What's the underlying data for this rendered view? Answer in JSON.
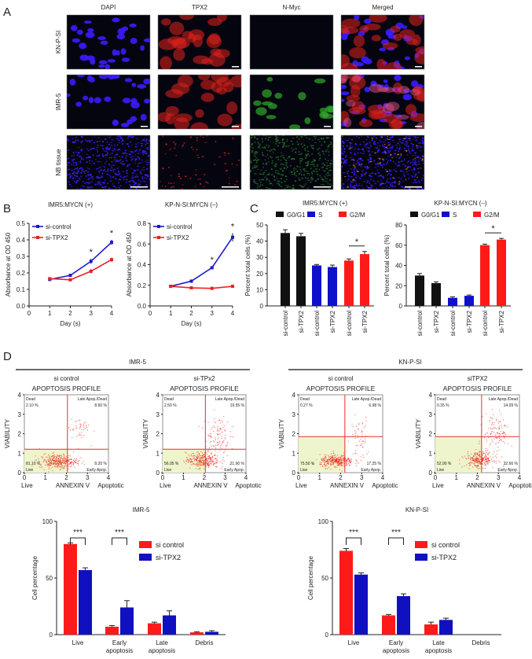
{
  "panel_labels": [
    "A",
    "B",
    "C",
    "D"
  ],
  "panelA": {
    "columns": [
      "DAPI",
      "TPX2",
      "N-Myc",
      "Merged"
    ],
    "rows": [
      "KN-P-SI",
      "IMR-5",
      "NB tissue"
    ],
    "channel_colors": {
      "dapi": "#3a1cff",
      "tpx2": "#e0201c",
      "nmyc": "#2fa82a"
    }
  },
  "panelD_groups": [
    "IMR-5",
    "KN-P-SI"
  ],
  "chart_data": [
    {
      "type": "line",
      "title": "IMR5:MYCN (+)",
      "xlabel": "Day (s)",
      "ylabel": "Absorbance at OD 450",
      "xlim": [
        0,
        4
      ],
      "ylim": [
        0,
        0.5
      ],
      "xticks": [
        "0",
        "1",
        "2",
        "3",
        "4"
      ],
      "yticks": [
        "0.0",
        "0.1",
        "0.2",
        "0.3",
        "0.4",
        "0.5"
      ],
      "x": [
        1,
        2,
        3,
        4
      ],
      "series": [
        {
          "name": "si-control",
          "color": "#1a1acc",
          "values": [
            0.16,
            0.185,
            0.27,
            0.385
          ],
          "errors": [
            0.008,
            0.008,
            0.015,
            0.015
          ]
        },
        {
          "name": "si-TPX2",
          "color": "#ee2020",
          "values": [
            0.165,
            0.158,
            0.21,
            0.28
          ],
          "errors": [
            0.006,
            0.005,
            0.012,
            0.012
          ]
        }
      ],
      "significance": [
        {
          "x": 3,
          "label": "*"
        },
        {
          "x": 4,
          "label": "*"
        }
      ]
    },
    {
      "type": "line",
      "title": "KP-N-SI:MYCN (–)",
      "xlabel": "Day (s)",
      "ylabel": "Absorbance at OD 450",
      "xlim": [
        0,
        4
      ],
      "ylim": [
        0,
        0.8
      ],
      "xticks": [
        "0",
        "1",
        "2",
        "3",
        "4"
      ],
      "yticks": [
        "0.0",
        "0.2",
        "0.4",
        "0.6",
        "0.8"
      ],
      "x": [
        1,
        2,
        3,
        4
      ],
      "series": [
        {
          "name": "si-control",
          "color": "#1a1acc",
          "values": [
            0.19,
            0.24,
            0.37,
            0.665
          ],
          "errors": [
            0.005,
            0.006,
            0.012,
            0.04
          ]
        },
        {
          "name": "si-TPX2",
          "color": "#ee2020",
          "values": [
            0.19,
            0.175,
            0.17,
            0.19
          ],
          "errors": [
            0.005,
            0.005,
            0.005,
            0.005
          ]
        }
      ],
      "significance": [
        {
          "x": 3,
          "label": "*"
        },
        {
          "x": 4,
          "label": "*"
        }
      ]
    },
    {
      "type": "bar",
      "title": "IMR5:MYCN (+)",
      "ylabel": "Percent total cells (%)",
      "ylim": [
        0,
        50
      ],
      "yticks": [
        "0",
        "10",
        "20",
        "30",
        "40",
        "50"
      ],
      "categories": [
        "si-control",
        "si-TPX2",
        "si-control",
        "si-TPX2",
        "si-control",
        "si-TPX2"
      ],
      "values": [
        45,
        43,
        25,
        24,
        28,
        32
      ],
      "errors": [
        2,
        1.8,
        0.6,
        1.2,
        1,
        1.6
      ],
      "groups": [
        0,
        0,
        1,
        1,
        2,
        2
      ],
      "legend": [
        {
          "name": "G0/G1",
          "color": "#111111"
        },
        {
          "name": "S",
          "color": "#1010cc"
        },
        {
          "name": "G2/M",
          "color": "#ff1a1a"
        }
      ],
      "significance": [
        {
          "between": [
            4,
            5
          ],
          "label": "*"
        }
      ]
    },
    {
      "type": "bar",
      "title": "KP-N-SI:MYCN (–)",
      "ylabel": "Percent total cells (%)",
      "ylim": [
        0,
        80
      ],
      "yticks": [
        "0",
        "20",
        "40",
        "60",
        "80"
      ],
      "categories": [
        "si-control",
        "si-TPX2",
        "si-control",
        "si-TPX2",
        "si-control",
        "si-TPX2"
      ],
      "values": [
        30,
        22.5,
        8,
        10,
        60,
        65.5
      ],
      "errors": [
        2,
        1.2,
        1,
        0.8,
        1,
        1.2
      ],
      "groups": [
        0,
        0,
        1,
        1,
        2,
        2
      ],
      "legend": [
        {
          "name": "G0/G1",
          "color": "#111111"
        },
        {
          "name": "S",
          "color": "#1010cc"
        },
        {
          "name": "G2/M",
          "color": "#ff1a1a"
        }
      ],
      "significance": [
        {
          "between": [
            4,
            5
          ],
          "label": "*"
        }
      ]
    },
    {
      "type": "scatter",
      "group": "IMR-5",
      "subtitle": "si control",
      "title": "APOPTOSIS PROFILE",
      "xlabel": [
        "Live",
        "ANNEXIN V",
        "Apoptotic"
      ],
      "ylabel": "VIABILITY",
      "xlim": [
        0,
        4
      ],
      "ylim": [
        0,
        4
      ],
      "ticks": [
        "0",
        "1",
        "2",
        "3",
        "4"
      ],
      "gate": {
        "x": 2.05,
        "y": 1.2
      },
      "quadrants": {
        "dead": "Dead",
        "dead_pct": "2.10 %",
        "late": "Late Apop./Dead",
        "late_pct": "8.60 %",
        "live": "Live",
        "live_pct": "81.10 %",
        "early": "Early Apop.",
        "early_pct": "8.20 %"
      },
      "clusters": [
        {
          "cx": 1.6,
          "cy": 0.6,
          "sx": 0.45,
          "sy": 0.18,
          "n": 330
        },
        {
          "cx": 2.6,
          "cy": 2.3,
          "sx": 0.25,
          "sy": 0.35,
          "n": 45
        }
      ]
    },
    {
      "type": "scatter",
      "group": "IMR-5",
      "subtitle": "si-TPx2",
      "title": "APOPTOSIS PROFILE",
      "xlabel": [
        "Live",
        "ANNEXIN V",
        "Apoptotic"
      ],
      "ylabel": "VIABILITY",
      "xlim": [
        0,
        4
      ],
      "ylim": [
        0,
        4
      ],
      "ticks": [
        "0",
        "1",
        "2",
        "3",
        "4"
      ],
      "gate": {
        "x": 2.05,
        "y": 1.2
      },
      "quadrants": {
        "dead": "Dead",
        "dead_pct": "2.50 %",
        "late": "Late Apop./Dead",
        "late_pct": "19.55 %",
        "live": "Live",
        "live_pct": "56.05 %",
        "early": "Early Apop.",
        "early_pct": "21.90 %"
      },
      "clusters": [
        {
          "cx": 1.9,
          "cy": 0.65,
          "sx": 0.4,
          "sy": 0.2,
          "n": 300
        },
        {
          "cx": 2.6,
          "cy": 1.9,
          "sx": 0.3,
          "sy": 0.55,
          "n": 110
        }
      ]
    },
    {
      "type": "scatter",
      "group": "KN-P-SI",
      "subtitle": "si control",
      "title": "APOPTOSIS PROFILE",
      "xlabel": [
        "Live",
        "ANNEXIN V",
        "Apoptotic"
      ],
      "ylabel": "VIABILITY",
      "xlim": [
        0,
        4
      ],
      "ylim": [
        0,
        4
      ],
      "ticks": [
        "0",
        "1",
        "2",
        "3",
        "4"
      ],
      "gate": {
        "x": 2.2,
        "y": 1.85
      },
      "quadrants": {
        "dead": "Dead",
        "dead_pct": "0.27 %",
        "late": "Late Apop./Dead",
        "late_pct": "6.98 %",
        "live": "Live",
        "live_pct": "75.50 %",
        "early": "Early Apop.",
        "early_pct": "17.25 %"
      },
      "clusters": [
        {
          "cx": 1.8,
          "cy": 0.6,
          "sx": 0.4,
          "sy": 0.16,
          "n": 330
        },
        {
          "cx": 2.9,
          "cy": 1.8,
          "sx": 0.22,
          "sy": 0.55,
          "n": 55
        }
      ]
    },
    {
      "type": "scatter",
      "group": "KN-P-SI",
      "subtitle": "siTPX2",
      "title": "APOPTOSIS PROFILE",
      "xlabel": [
        "Live",
        "ANNEXIN V",
        "Apoptotic"
      ],
      "ylabel": "VIABILITY",
      "xlim": [
        0,
        4
      ],
      "ylim": [
        0,
        4
      ],
      "ticks": [
        "0",
        "1",
        "2",
        "3",
        "4"
      ],
      "gate": {
        "x": 2.2,
        "y": 1.85
      },
      "quadrants": {
        "dead": "Dead",
        "dead_pct": "0.35 %",
        "late": "Late Apop./Dead",
        "late_pct": "14.09 %",
        "live": "Live",
        "live_pct": "52.90 %",
        "early": "Early Apop.",
        "early_pct": "32.66 %"
      },
      "clusters": [
        {
          "cx": 2.1,
          "cy": 0.7,
          "sx": 0.35,
          "sy": 0.2,
          "n": 280
        },
        {
          "cx": 2.9,
          "cy": 2.1,
          "sx": 0.3,
          "sy": 0.5,
          "n": 110
        }
      ]
    },
    {
      "type": "bar",
      "title": "IMR-5",
      "ylabel": "Cell percentage",
      "ylim": [
        0,
        100
      ],
      "yticks": [
        "0",
        "50",
        "100"
      ],
      "categories": [
        [
          "Live"
        ],
        [
          "Early",
          "apoptosis"
        ],
        [
          "Late",
          "apoptosis"
        ],
        [
          "Debris"
        ]
      ],
      "series": [
        {
          "name": "si control",
          "color": "#ff1a1a",
          "values": [
            80,
            7,
            10,
            2
          ],
          "errors": [
            1,
            1,
            1,
            0.5
          ]
        },
        {
          "name": "si-TPX2",
          "color": "#1010c0",
          "values": [
            57,
            24,
            17,
            2.5
          ],
          "errors": [
            2,
            6,
            4,
            1
          ]
        }
      ],
      "significance": [
        {
          "category": 0,
          "label": "***"
        },
        {
          "category": 1,
          "label": "***"
        }
      ]
    },
    {
      "type": "bar",
      "title": "KN-P-SI",
      "ylabel": "Cell percentage",
      "ylim": [
        0,
        100
      ],
      "yticks": [
        "0",
        "50",
        "100"
      ],
      "categories": [
        [
          "Live"
        ],
        [
          "Early",
          "apoptosis"
        ],
        [
          "Late",
          "apoptosis"
        ],
        [
          "Debris"
        ]
      ],
      "series": [
        {
          "name": "si control",
          "color": "#ff1a1a",
          "values": [
            74,
            17,
            9,
            0
          ],
          "errors": [
            2,
            0.8,
            2,
            0
          ]
        },
        {
          "name": "si-TPX2",
          "color": "#1010c0",
          "values": [
            53,
            34,
            13,
            0
          ],
          "errors": [
            1.5,
            2,
            1.5,
            0
          ]
        }
      ],
      "significance": [
        {
          "category": 0,
          "label": "***"
        },
        {
          "category": 1,
          "label": "***"
        }
      ]
    }
  ]
}
